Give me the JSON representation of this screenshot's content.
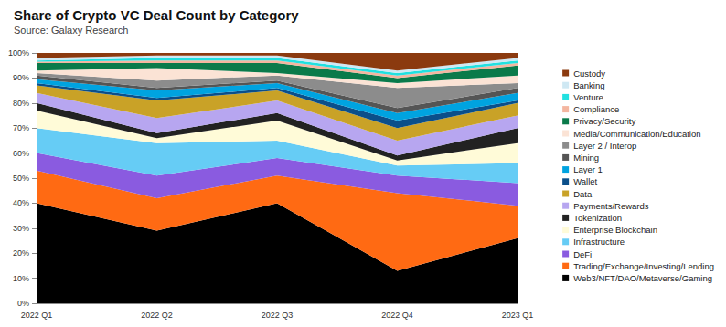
{
  "chart_data": {
    "type": "area",
    "title": "Share of Crypto VC Deal Count by Category",
    "subtitle": "Source: Galaxy Research",
    "stacked": true,
    "legend": "right",
    "grid": false,
    "categories": [
      "2022 Q1",
      "2022 Q2",
      "2022 Q3",
      "2022 Q4",
      "2023 Q1"
    ],
    "ylim": [
      0,
      100
    ],
    "yticks": [
      {
        "value": 0,
        "label": "0%"
      },
      {
        "value": 10,
        "label": "10%"
      },
      {
        "value": 20,
        "label": "20%"
      },
      {
        "value": 30,
        "label": "30%"
      },
      {
        "value": 40,
        "label": "40%"
      },
      {
        "value": 50,
        "label": "50%"
      },
      {
        "value": 60,
        "label": "60%"
      },
      {
        "value": 70,
        "label": "70%"
      },
      {
        "value": 80,
        "label": "80%"
      },
      {
        "value": 90,
        "label": "90%"
      },
      {
        "value": 100,
        "label": "100%"
      }
    ],
    "series": [
      {
        "name": "Web3/NFT/DAO/Metaverse/Gaming",
        "color": "#000000",
        "values": [
          40,
          29,
          40,
          13,
          26
        ]
      },
      {
        "name": "Trading/Exchange/Investing/Lending",
        "color": "#ff6a13",
        "values": [
          13,
          13,
          11,
          31,
          13
        ]
      },
      {
        "name": "DeFi",
        "color": "#8a5be0",
        "values": [
          7,
          9,
          7,
          7,
          9
        ]
      },
      {
        "name": "Infrastructure",
        "color": "#66ccf5",
        "values": [
          10,
          13,
          7,
          4,
          8
        ]
      },
      {
        "name": "Enterprise Blockchain",
        "color": "#fffbd8",
        "values": [
          7,
          2,
          8,
          2,
          8
        ]
      },
      {
        "name": "Tokenization",
        "color": "#222222",
        "values": [
          3,
          2,
          3,
          2,
          6
        ]
      },
      {
        "name": "Payments/Rewards",
        "color": "#b7a6f0",
        "values": [
          4,
          6,
          5,
          6,
          5
        ]
      },
      {
        "name": "Data",
        "color": "#c9a227",
        "values": [
          3,
          7,
          4,
          5,
          5
        ]
      },
      {
        "name": "Wallet",
        "color": "#0b4f8a",
        "values": [
          1,
          1,
          1,
          3,
          1
        ]
      },
      {
        "name": "Layer 1",
        "color": "#00a3e0",
        "values": [
          1.5,
          3,
          2,
          3,
          3
        ]
      },
      {
        "name": "Mining",
        "color": "#555555",
        "values": [
          1.5,
          1,
          1,
          2,
          2
        ]
      },
      {
        "name": "Layer 2 / Interop",
        "color": "#8c8c8c",
        "values": [
          1,
          3,
          2,
          8,
          2
        ]
      },
      {
        "name": "Media/Communication/Education",
        "color": "#fbe3d5",
        "values": [
          1,
          5,
          1,
          2,
          3
        ]
      },
      {
        "name": "Privacy/Security",
        "color": "#0a7a4a",
        "values": [
          3,
          2,
          4,
          2,
          4
        ]
      },
      {
        "name": "Compliance",
        "color": "#f4b6a0",
        "values": [
          0.5,
          1,
          1,
          1,
          1
        ]
      },
      {
        "name": "Venture",
        "color": "#22e0e0",
        "values": [
          0.5,
          1,
          1,
          1,
          1
        ]
      },
      {
        "name": "Banking",
        "color": "#cfe8f3",
        "values": [
          1,
          1,
          1,
          1,
          1
        ]
      },
      {
        "name": "Custody",
        "color": "#8b3a0f",
        "values": [
          2,
          1,
          1,
          7,
          2
        ]
      }
    ]
  }
}
